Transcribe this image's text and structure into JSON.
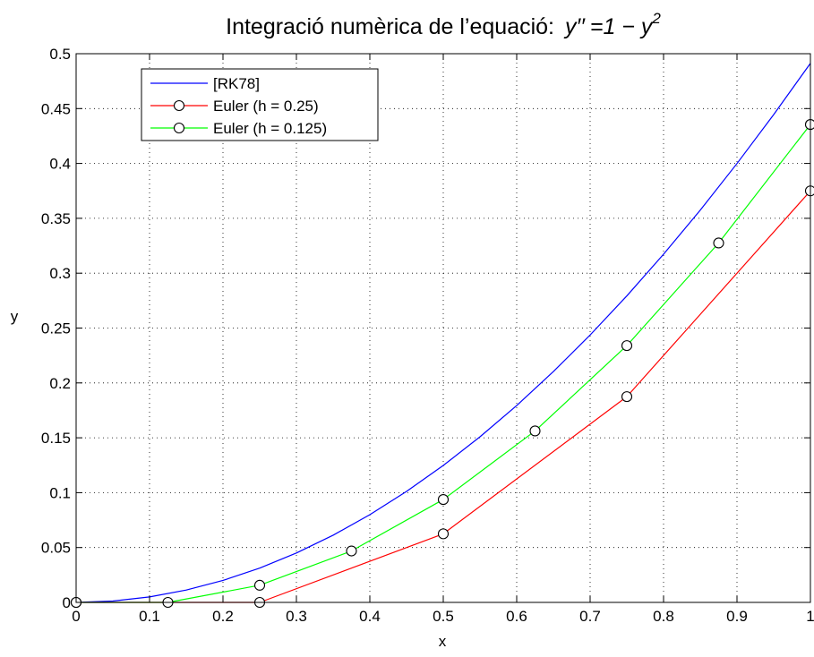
{
  "chart_data": {
    "type": "line",
    "title_prefix": "Integració numèrica de l’equació:",
    "title_equation": {
      "lhs": "y′′",
      "eq": "=1 − y",
      "sup": "2"
    },
    "xlabel": "x",
    "ylabel": "y",
    "xlim": [
      0,
      1
    ],
    "ylim": [
      0,
      0.5
    ],
    "xticks": [
      0,
      0.1,
      0.2,
      0.3,
      0.4,
      0.5,
      0.6,
      0.7,
      0.8,
      0.9,
      1
    ],
    "xtick_labels": [
      "0",
      "0.1",
      "0.2",
      "0.3",
      "0.4",
      "0.5",
      "0.6",
      "0.7",
      "0.8",
      "0.9",
      "1"
    ],
    "yticks": [
      0,
      0.05,
      0.1,
      0.15,
      0.2,
      0.25,
      0.3,
      0.35,
      0.4,
      0.45,
      0.5
    ],
    "ytick_labels": [
      "0",
      "0.05",
      "0.1",
      "0.15",
      "0.2",
      "0.25",
      "0.3",
      "0.35",
      "0.4",
      "0.45",
      "0.5"
    ],
    "grid": true,
    "legend_position": "top-left",
    "series": [
      {
        "name": "[RK78]",
        "color": "#0000ff",
        "markers": false,
        "x": [
          0,
          0.05,
          0.1,
          0.15,
          0.2,
          0.25,
          0.3,
          0.35,
          0.4,
          0.45,
          0.5,
          0.55,
          0.6,
          0.65,
          0.7,
          0.75,
          0.8,
          0.85,
          0.9,
          0.95,
          1.0
        ],
        "y": [
          0,
          0.00125,
          0.005,
          0.01125,
          0.02,
          0.03124,
          0.04498,
          0.06121,
          0.07993,
          0.10113,
          0.12479,
          0.1509,
          0.17943,
          0.21036,
          0.24367,
          0.27932,
          0.31727,
          0.35749,
          0.39993,
          0.44453,
          0.49125
        ]
      },
      {
        "name": "Euler (h = 0.25)",
        "color": "#ff0000",
        "markers": true,
        "x": [
          0,
          0.25,
          0.5,
          0.75,
          1.0
        ],
        "y": [
          0,
          0,
          0.0625,
          0.1875,
          0.375
        ]
      },
      {
        "name": "Euler (h = 0.125)",
        "color": "#00ff00",
        "markers": true,
        "x": [
          0,
          0.125,
          0.25,
          0.375,
          0.5,
          0.625,
          0.75,
          0.875,
          1.0
        ],
        "y": [
          0,
          0,
          0.015625,
          0.046875,
          0.09375,
          0.15625,
          0.234,
          0.3275,
          0.4355
        ]
      }
    ]
  }
}
